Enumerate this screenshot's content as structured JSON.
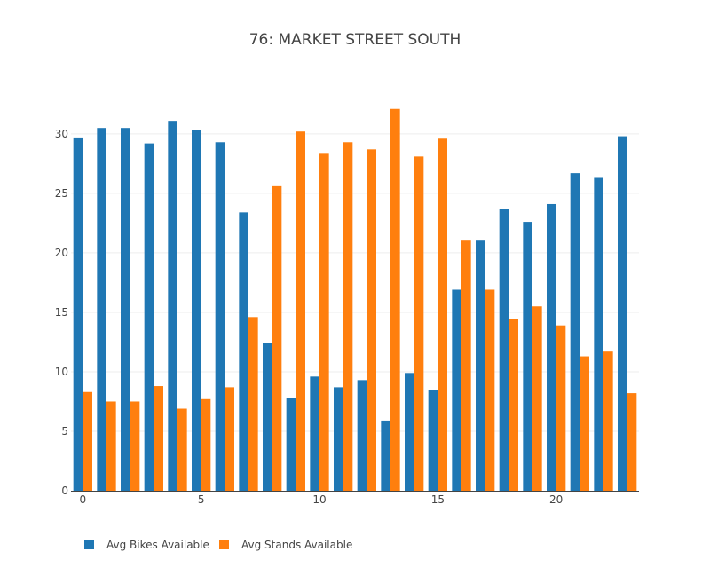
{
  "chart_data": {
    "type": "bar",
    "title": "76: MARKET STREET SOUTH",
    "xlabel": "",
    "ylabel": "",
    "x": [
      0,
      1,
      2,
      3,
      4,
      5,
      6,
      7,
      8,
      9,
      10,
      11,
      12,
      13,
      14,
      15,
      16,
      17,
      18,
      19,
      20,
      21,
      22,
      23
    ],
    "x_ticks": [
      0,
      5,
      10,
      15,
      20
    ],
    "y_ticks": [
      0,
      5,
      10,
      15,
      20,
      25,
      30
    ],
    "ylim": [
      0,
      33.2
    ],
    "xlim": [
      -0.5,
      23.5
    ],
    "grid": true,
    "legend_placement": "bottom-left",
    "series": [
      {
        "name": "Avg Bikes Available",
        "color": "#1f77b4",
        "values": [
          29.7,
          30.5,
          30.5,
          29.2,
          31.1,
          30.3,
          29.3,
          23.4,
          12.4,
          7.8,
          9.6,
          8.7,
          9.3,
          5.9,
          9.9,
          8.5,
          16.9,
          21.1,
          23.7,
          22.6,
          24.1,
          26.7,
          26.3,
          29.8
        ]
      },
      {
        "name": "Avg Stands Available",
        "color": "#ff7f0e",
        "values": [
          8.3,
          7.5,
          7.5,
          8.8,
          6.9,
          7.7,
          8.7,
          14.6,
          25.6,
          30.2,
          28.4,
          29.3,
          28.7,
          32.1,
          28.1,
          29.6,
          21.1,
          16.9,
          14.4,
          15.5,
          13.9,
          11.3,
          11.7,
          8.2
        ]
      }
    ]
  }
}
